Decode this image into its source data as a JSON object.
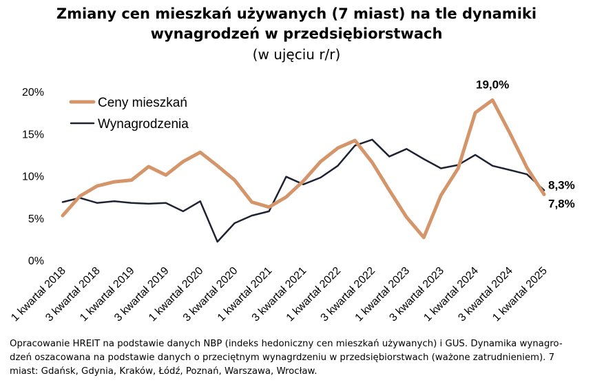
{
  "chart_data": {
    "type": "line",
    "title": "Zmiany cen mieszkań używanych (7 miast) na tle dynamiki wynagrodzeń w przedsiębiorstwach",
    "subtitle": "(w ujęciu r/r)",
    "ylim": [
      0,
      20
    ],
    "y_ticks": [
      "0%",
      "5%",
      "10%",
      "15%",
      "20%"
    ],
    "x_tick_labels": [
      "1 kwartał 2018",
      "3 kwartał 2018",
      "1 kwartał 2019",
      "3 kwartał 2019",
      "1 kwartał 2020",
      "3 kwartał 2020",
      "1 kwartał 2021",
      "3 kwartał 2021",
      "1 kwartał 2022",
      "3 kwartał 2022",
      "1 kwartał 2023",
      "3 kwartał 2023",
      "1 kwartał 2024",
      "3 kwartał 2024",
      "1 kwartał 2025"
    ],
    "legend_position": "top-left",
    "grid": false,
    "series": [
      {
        "name": "Ceny mieszkań",
        "color": "#d4956a",
        "values": [
          5.3,
          7.6,
          8.8,
          9.3,
          9.5,
          11.1,
          10.1,
          11.7,
          12.8,
          11.2,
          9.5,
          6.9,
          6.3,
          7.5,
          9.4,
          11.7,
          13.3,
          14.2,
          11.6,
          8.3,
          5.1,
          2.7,
          7.7,
          10.9,
          17.5,
          19.0,
          15.1,
          11.0,
          7.8
        ]
      },
      {
        "name": "Wynagrodzenia",
        "color": "#1f2233",
        "values": [
          6.9,
          7.4,
          6.8,
          7.0,
          6.8,
          6.7,
          6.8,
          5.8,
          7.0,
          2.2,
          4.4,
          5.3,
          5.8,
          9.9,
          9.0,
          9.8,
          11.2,
          13.6,
          14.3,
          12.3,
          13.2,
          12.0,
          10.9,
          11.3,
          12.5,
          11.2,
          10.7,
          10.2,
          8.3
        ]
      }
    ],
    "annotations": [
      {
        "text": "19,0%",
        "series": 0,
        "index": 25
      },
      {
        "text": "8,3%",
        "series": 1,
        "index": 28
      },
      {
        "text": "7,8%",
        "series": 0,
        "index": 28
      }
    ]
  },
  "footnote": "Opracowanie HREIT na podstawie danych NBP (indeks hedoniczny cen mieszkań używanych) i GUS. Dynamika wynagro-dzeń oszacowana na podstawie danych o przeciętnym wynagrdzeniu w przedsiębiorstwach (ważone zatrudnieniem). 7 miast: Gdańsk, Gdynia, Kraków, Łódź, Poznań, Warszawa, Wrocław."
}
